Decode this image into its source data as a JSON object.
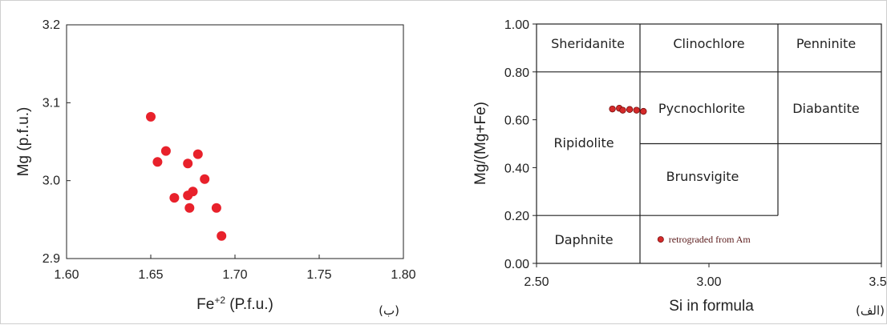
{
  "chart_data": [
    {
      "panel": "left",
      "type": "scatter",
      "panel_label": "(ب)",
      "xlabel": "Fe+2 (P.f.u.)",
      "ylabel": "Mg (p.f.u.)",
      "xlim": [
        1.6,
        1.8
      ],
      "ylim": [
        2.9,
        3.2
      ],
      "xticks": [
        "1.60",
        "1.65",
        "1.70",
        "1.75",
        "1.80"
      ],
      "yticks": [
        "2.9",
        "3.0",
        "3.1",
        "3.2"
      ],
      "grid": false,
      "marker_color": "#e8212b",
      "points": [
        {
          "x": 1.65,
          "y": 3.082
        },
        {
          "x": 1.659,
          "y": 3.038
        },
        {
          "x": 1.654,
          "y": 3.024
        },
        {
          "x": 1.678,
          "y": 3.034
        },
        {
          "x": 1.672,
          "y": 3.022
        },
        {
          "x": 1.682,
          "y": 3.002
        },
        {
          "x": 1.664,
          "y": 2.978
        },
        {
          "x": 1.672,
          "y": 2.981
        },
        {
          "x": 1.675,
          "y": 2.986
        },
        {
          "x": 1.673,
          "y": 2.965
        },
        {
          "x": 1.689,
          "y": 2.965
        },
        {
          "x": 1.692,
          "y": 2.929
        }
      ]
    },
    {
      "panel": "right",
      "type": "scatter",
      "panel_label": "(الف)",
      "xlabel": "Si in formula",
      "ylabel": "Mg/(Mg+Fe)",
      "xlim": [
        2.5,
        3.5
      ],
      "ylim": [
        0.0,
        1.0
      ],
      "xticks": [
        "2.50",
        "3.00",
        "3.50"
      ],
      "yticks": [
        "0.00",
        "0.20",
        "0.40",
        "0.60",
        "0.80",
        "1.00"
      ],
      "grid": false,
      "marker_color": "#d42a2a",
      "regions": [
        "Sheridanite",
        "Clinochlore",
        "Penninite",
        "Ripidolite",
        "Pycnochlorite",
        "Diabantite",
        "Brunsvigite",
        "Daphnite"
      ],
      "region_boundaries": [
        {
          "x": [
            2.5,
            3.5
          ],
          "y": [
            0.8,
            0.8
          ]
        },
        {
          "x": [
            2.5,
            3.2
          ],
          "y": [
            0.2,
            0.2
          ]
        },
        {
          "x": [
            2.8,
            3.5
          ],
          "y": [
            0.5,
            0.5
          ]
        },
        {
          "x": [
            2.8,
            2.8
          ],
          "y": [
            0.0,
            1.0
          ]
        },
        {
          "x": [
            3.2,
            3.2
          ],
          "y": [
            0.2,
            1.0
          ]
        }
      ],
      "points": [
        {
          "x": 2.72,
          "y": 0.645
        },
        {
          "x": 2.74,
          "y": 0.648
        },
        {
          "x": 2.75,
          "y": 0.64
        },
        {
          "x": 2.77,
          "y": 0.643
        },
        {
          "x": 2.79,
          "y": 0.64
        },
        {
          "x": 2.81,
          "y": 0.635
        }
      ],
      "legend_marker": {
        "x": 2.86,
        "y": 0.1,
        "label": "retrograded from Am"
      }
    }
  ]
}
